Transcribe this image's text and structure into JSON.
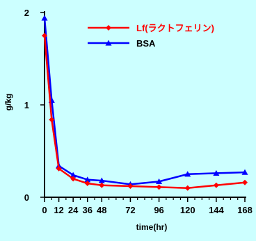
{
  "chart_data": {
    "type": "line",
    "title": "",
    "xlabel": "time(hr)",
    "ylabel": "g/kg",
    "xlim": [
      0,
      168
    ],
    "ylim": [
      0,
      2
    ],
    "x_ticks": [
      0,
      12,
      24,
      36,
      48,
      72,
      96,
      120,
      144,
      168
    ],
    "x_minor_step": 6,
    "y_ticks": [
      0,
      1,
      2
    ],
    "grid": false,
    "legend_position": "top-right",
    "background_color": "#ccffff",
    "series": [
      {
        "name": "Lf(ラクトフェリン)",
        "color": "#ff0000",
        "marker": "diamond",
        "x": [
          0,
          6,
          12,
          24,
          36,
          48,
          72,
          96,
          120,
          144,
          168
        ],
        "y": [
          1.75,
          0.84,
          0.31,
          0.2,
          0.15,
          0.13,
          0.12,
          0.11,
          0.1,
          0.13,
          0.16
        ]
      },
      {
        "name": "BSA",
        "color": "#0000ff",
        "marker": "triangle",
        "x": [
          0,
          6,
          12,
          24,
          36,
          48,
          72,
          96,
          120,
          144,
          168
        ],
        "y": [
          1.94,
          1.05,
          0.34,
          0.24,
          0.19,
          0.18,
          0.14,
          0.17,
          0.25,
          0.26,
          0.27
        ]
      }
    ]
  }
}
